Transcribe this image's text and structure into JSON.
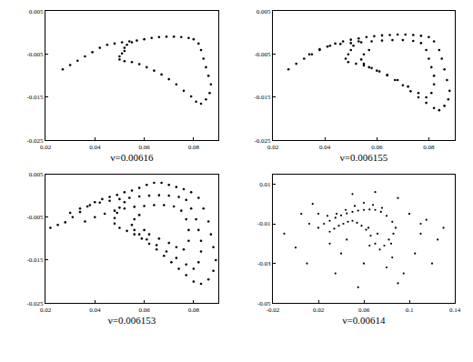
{
  "chart_data": [
    {
      "type": "scatter",
      "xlabel": "ν=0.00616",
      "xlim": [
        0.02,
        0.09
      ],
      "xticks": [
        0.02,
        0.04,
        0.06,
        0.08
      ],
      "ylim": [
        -0.025,
        0.005
      ],
      "yticks": [
        -0.025,
        -0.015,
        -0.005,
        0.005
      ],
      "color": "#000000",
      "grid": false,
      "x": [
        0.027,
        0.03,
        0.033,
        0.036,
        0.039,
        0.042,
        0.045,
        0.048,
        0.051,
        0.054,
        0.057,
        0.06,
        0.063,
        0.066,
        0.069,
        0.072,
        0.075,
        0.078,
        0.08,
        0.082,
        0.083,
        0.084,
        0.085,
        0.086,
        0.087,
        0.0865,
        0.085,
        0.083,
        0.081,
        0.079,
        0.076,
        0.073,
        0.07,
        0.067,
        0.064,
        0.061,
        0.058,
        0.055,
        0.052,
        0.05,
        0.05,
        0.051,
        0.052,
        0.052,
        0.053,
        0.055
      ],
      "values": [
        -0.0085,
        -0.0075,
        -0.0065,
        -0.0055,
        -0.0045,
        -0.0035,
        -0.0028,
        -0.0025,
        -0.0022,
        -0.002,
        -0.0018,
        -0.0015,
        -0.0012,
        -0.001,
        -0.0009,
        -0.0009,
        -0.001,
        -0.0012,
        -0.0015,
        -0.0025,
        -0.004,
        -0.006,
        -0.008,
        -0.01,
        -0.012,
        -0.014,
        -0.0155,
        -0.0165,
        -0.016,
        -0.0148,
        -0.0135,
        -0.012,
        -0.0108,
        -0.0097,
        -0.0088,
        -0.008,
        -0.0073,
        -0.0068,
        -0.0066,
        -0.0062,
        -0.0055,
        -0.0048,
        -0.0042,
        -0.0035,
        -0.0028,
        -0.0022
      ]
    },
    {
      "type": "scatter",
      "xlabel": "ν=0.006155",
      "xlim": [
        0.02,
        0.09
      ],
      "xticks": [
        0.02,
        0.04,
        0.06,
        0.08
      ],
      "ylim": [
        -0.025,
        0.005
      ],
      "yticks": [
        -0.025,
        -0.015,
        -0.005,
        0.005
      ],
      "color": "#000000",
      "grid": false,
      "x": [
        0.026,
        0.029,
        0.032,
        0.035,
        0.038,
        0.041,
        0.044,
        0.047,
        0.05,
        0.053,
        0.056,
        0.059,
        0.062,
        0.065,
        0.068,
        0.071,
        0.074,
        0.077,
        0.08,
        0.082,
        0.084,
        0.085,
        0.086,
        0.087,
        0.088,
        0.0875,
        0.086,
        0.084,
        0.082,
        0.079,
        0.076,
        0.073,
        0.07,
        0.067,
        0.064,
        0.061,
        0.058,
        0.055,
        0.052,
        0.049,
        0.048,
        0.049,
        0.05,
        0.051,
        0.053,
        0.034,
        0.038,
        0.042,
        0.046,
        0.05,
        0.054,
        0.058,
        0.062,
        0.066,
        0.07,
        0.074,
        0.077,
        0.079,
        0.08,
        0.081,
        0.082,
        0.082,
        0.081,
        0.079,
        0.076,
        0.072,
        0.068,
        0.064,
        0.06,
        0.057,
        0.055,
        0.054,
        0.055,
        0.057
      ],
      "values": [
        -0.0085,
        -0.0072,
        -0.006,
        -0.005,
        -0.004,
        -0.0032,
        -0.0025,
        -0.002,
        -0.0016,
        -0.0013,
        -0.001,
        -0.0008,
        -0.0006,
        -0.0005,
        -0.0004,
        -0.0004,
        -0.0005,
        -0.0007,
        -0.001,
        -0.002,
        -0.004,
        -0.006,
        -0.0085,
        -0.011,
        -0.0135,
        -0.0155,
        -0.017,
        -0.018,
        -0.0175,
        -0.0163,
        -0.015,
        -0.0136,
        -0.0122,
        -0.011,
        -0.0099,
        -0.009,
        -0.0082,
        -0.0076,
        -0.0072,
        -0.0068,
        -0.006,
        -0.005,
        -0.004,
        -0.003,
        -0.002,
        -0.005,
        -0.0038,
        -0.003,
        -0.0026,
        -0.0024,
        -0.0022,
        -0.002,
        -0.0018,
        -0.0017,
        -0.0017,
        -0.0019,
        -0.0024,
        -0.004,
        -0.006,
        -0.008,
        -0.01,
        -0.012,
        -0.014,
        -0.015,
        -0.014,
        -0.0125,
        -0.011,
        -0.0098,
        -0.0088,
        -0.008,
        -0.0072,
        -0.0062,
        -0.005,
        -0.004
      ]
    },
    {
      "type": "scatter",
      "xlabel": "ν=0.006153",
      "xlim": [
        0.02,
        0.09
      ],
      "xticks": [
        0.02,
        0.04,
        0.06,
        0.08
      ],
      "ylim": [
        -0.025,
        0.005
      ],
      "yticks": [
        -0.025,
        -0.015,
        -0.005,
        0.005
      ],
      "color": "#000000",
      "grid": false,
      "x": [
        0.022,
        0.025,
        0.028,
        0.031,
        0.034,
        0.037,
        0.04,
        0.043,
        0.046,
        0.049,
        0.052,
        0.055,
        0.058,
        0.061,
        0.064,
        0.067,
        0.07,
        0.073,
        0.076,
        0.079,
        0.082,
        0.084,
        0.086,
        0.087,
        0.088,
        0.089,
        0.088,
        0.086,
        0.083,
        0.08,
        0.077,
        0.074,
        0.071,
        0.068,
        0.065,
        0.062,
        0.059,
        0.056,
        0.053,
        0.05,
        0.048,
        0.048,
        0.049,
        0.05,
        0.052,
        0.03,
        0.034,
        0.038,
        0.042,
        0.046,
        0.05,
        0.054,
        0.058,
        0.062,
        0.066,
        0.07,
        0.074,
        0.077,
        0.079,
        0.081,
        0.082,
        0.083,
        0.083,
        0.082,
        0.08,
        0.077,
        0.073,
        0.069,
        0.065,
        0.061,
        0.058,
        0.056,
        0.055,
        0.056,
        0.058,
        0.036,
        0.04,
        0.044,
        0.048,
        0.052,
        0.056,
        0.06,
        0.064,
        0.068,
        0.072,
        0.075,
        0.077,
        0.078,
        0.078,
        0.076,
        0.073,
        0.07,
        0.066,
        0.062,
        0.06
      ],
      "values": [
        -0.0075,
        -0.0068,
        -0.0062,
        -0.005,
        -0.0038,
        -0.0025,
        -0.0015,
        -0.0008,
        -0.0003,
        0.0002,
        0.0008,
        0.0012,
        0.0018,
        0.0025,
        0.003,
        0.003,
        0.0025,
        0.002,
        0.0015,
        0.0008,
        -0.0005,
        -0.003,
        -0.006,
        -0.009,
        -0.012,
        -0.015,
        -0.0175,
        -0.0195,
        -0.0205,
        -0.02,
        -0.0185,
        -0.017,
        -0.0155,
        -0.014,
        -0.0125,
        -0.0112,
        -0.01,
        -0.009,
        -0.0082,
        -0.0075,
        -0.0065,
        -0.0052,
        -0.004,
        -0.0028,
        -0.0015,
        -0.004,
        -0.003,
        -0.0022,
        -0.0016,
        -0.0012,
        -0.0008,
        -0.0005,
        -0.0002,
        0.0,
        0.0001,
        0.0,
        -0.0003,
        -0.001,
        -0.003,
        -0.0055,
        -0.008,
        -0.0105,
        -0.013,
        -0.0155,
        -0.017,
        -0.016,
        -0.0145,
        -0.013,
        -0.0115,
        -0.0102,
        -0.009,
        -0.008,
        -0.0068,
        -0.0055,
        -0.0045,
        -0.006,
        -0.005,
        -0.0042,
        -0.0035,
        -0.003,
        -0.0026,
        -0.0024,
        -0.0022,
        -0.0022,
        -0.0025,
        -0.0035,
        -0.0055,
        -0.008,
        -0.0105,
        -0.0125,
        -0.012,
        -0.011,
        -0.01,
        -0.009,
        -0.008
      ]
    },
    {
      "type": "scatter",
      "xlabel": "ν=0.00614",
      "xlim": [
        -0.02,
        0.14
      ],
      "xticks": [
        -0.02,
        0.02,
        0.06,
        0.1,
        0.14
      ],
      "ylim": [
        -0.05,
        0.015
      ],
      "yticks": [
        -0.05,
        -0.03,
        -0.01,
        0.01
      ],
      "color": "#000000",
      "grid": false,
      "x": [
        0.02,
        0.025,
        0.03,
        0.035,
        0.04,
        0.045,
        0.05,
        0.055,
        0.06,
        0.065,
        0.07,
        0.075,
        0.08,
        0.085,
        0.088,
        0.086,
        0.082,
        0.078,
        0.074,
        0.07,
        0.066,
        0.062,
        0.058,
        0.054,
        0.05,
        0.046,
        0.042,
        0.038,
        0.034,
        0.03,
        0.028,
        0.036,
        0.044,
        0.052,
        0.06,
        0.068,
        0.076,
        0.084,
        0.072,
        0.064,
        -0.01,
        0.0,
        0.005,
        0.01,
        0.012,
        0.015,
        0.1,
        0.105,
        0.11,
        0.115,
        0.12,
        0.125,
        0.095,
        0.09,
        0.1,
        0.04,
        0.06,
        0.08,
        0.05,
        0.07,
        0.03,
        0.11,
        0.02,
        0.09,
        0.13,
        0.045,
        0.065,
        0.085,
        0.035,
        0.055
      ],
      "values": [
        -0.012,
        -0.01,
        -0.0085,
        -0.007,
        -0.0058,
        -0.0048,
        -0.004,
        -0.0034,
        -0.003,
        -0.0028,
        -0.003,
        -0.004,
        -0.006,
        -0.009,
        -0.012,
        -0.015,
        -0.018,
        -0.021,
        -0.023,
        -0.02,
        -0.016,
        -0.013,
        -0.011,
        -0.0095,
        -0.0085,
        -0.009,
        -0.01,
        -0.011,
        -0.0125,
        -0.014,
        -0.006,
        -0.005,
        -0.003,
        -0.001,
        0.0005,
        -0.0005,
        -0.002,
        -0.02,
        -0.015,
        -0.012,
        -0.015,
        -0.022,
        -0.005,
        -0.03,
        -0.01,
        0.0,
        -0.005,
        -0.025,
        -0.015,
        -0.008,
        -0.03,
        -0.018,
        -0.035,
        -0.04,
        -0.005,
        -0.025,
        -0.03,
        -0.032,
        0.005,
        0.006,
        -0.02,
        -0.01,
        -0.005,
        0.003,
        -0.012,
        -0.018,
        -0.021,
        -0.027,
        -0.035,
        -0.042
      ]
    }
  ]
}
